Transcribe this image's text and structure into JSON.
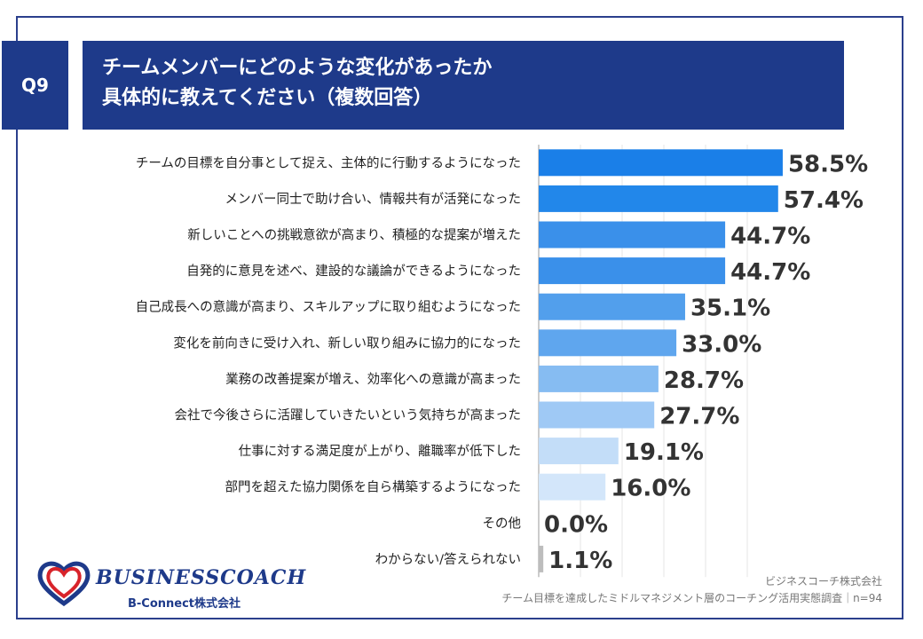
{
  "header": {
    "badge": "Q9",
    "title_line1": "チームメンバーにどのような変化があったか",
    "title_line2": "具体的に教えてください（複数回答）"
  },
  "chart_data": {
    "type": "bar",
    "orientation": "horizontal",
    "categories": [
      "チームの目標を自分事として捉え、主体的に行動するようになった",
      "メンバー同士で助け合い、情報共有が活発になった",
      "新しいことへの挑戦意欲が高まり、積極的な提案が増えた",
      "自発的に意見を述べ、建設的な議論ができるようになった",
      "自己成長への意識が高まり、スキルアップに取り組むようになった",
      "変化を前向きに受け入れ、新しい取り組みに協力的になった",
      "業務の改善提案が増え、効率化への意識が高まった",
      "会社で今後さらに活躍していきたいという気持ちが高まった",
      "仕事に対する満足度が上がり、離職率が低下した",
      "部門を超えた協力関係を自ら構築するようになった",
      "その他",
      "わからない/答えられない"
    ],
    "values": [
      58.5,
      57.4,
      44.7,
      44.7,
      35.1,
      33.0,
      28.7,
      27.7,
      19.1,
      16.0,
      0.0,
      1.1
    ],
    "value_labels": [
      "58.5%",
      "57.4%",
      "44.7%",
      "44.7%",
      "35.1%",
      "33.0%",
      "28.7%",
      "27.7%",
      "19.1%",
      "16.0%",
      "0.0%",
      "1.1%"
    ],
    "xlim": [
      0,
      100
    ],
    "grid": true,
    "colors": [
      "#1a7fe8",
      "#2287ea",
      "#3a90ea",
      "#3a90ea",
      "#529fec",
      "#5fa6ee",
      "#86bcf2",
      "#9fc9f5",
      "#c3ddf8",
      "#d3e6fa",
      "#c8c8c8",
      "#bdbdbd"
    ]
  },
  "footer": {
    "logo_name": "BUSINESSCOACH",
    "logo_sub": "B-Connect株式会社",
    "source_line1": "ビジネスコーチ株式会社",
    "source_line2": "チーム目標を達成したミドルマネジメント層のコーチング活用実態調査｜n=94"
  },
  "colors": {
    "navy": "#1e3a8a",
    "accent_red": "#d8232a"
  }
}
